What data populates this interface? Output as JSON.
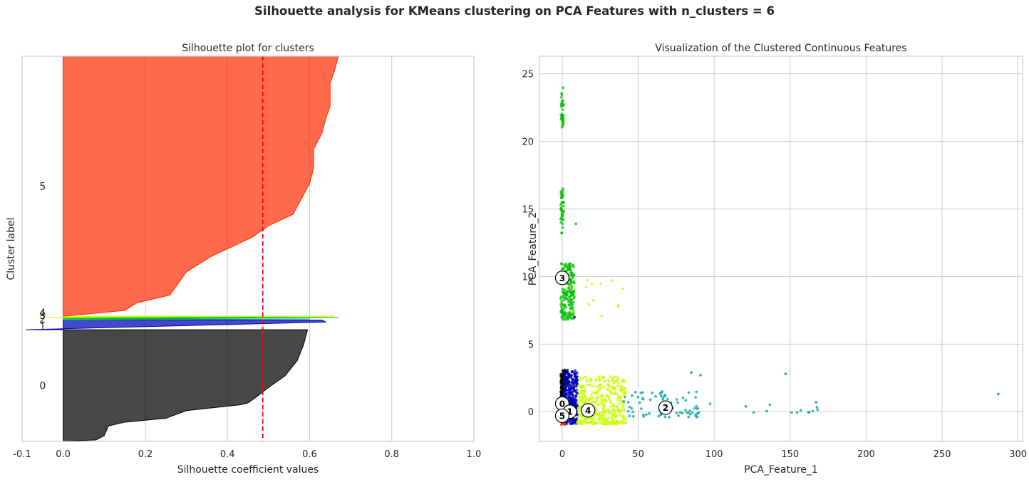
{
  "suptitle": "Silhouette analysis for KMeans clustering on PCA Features with n_clusters = 6",
  "chart_data": [
    {
      "type": "area",
      "title": "Silhouette plot for clusters",
      "xlabel": "Silhouette coefficient values",
      "ylabel": "Cluster label",
      "xlim": [
        -0.1,
        1.0
      ],
      "xticks": [
        -0.1,
        0.0,
        0.2,
        0.4,
        0.6,
        0.8,
        1.0
      ],
      "xtick_labels": [
        "-0.1",
        "0.0",
        "0.2",
        "0.4",
        "0.6",
        "0.8",
        "1.0"
      ],
      "average_silhouette": 0.486,
      "grid": true,
      "clusters": [
        {
          "label": "0",
          "color": "#000000",
          "y_range": [
            0,
            0.29
          ],
          "profile": [
            [
              0.0,
              0.0
            ],
            [
              0.08,
              0.004
            ],
            [
              0.1,
              0.015
            ],
            [
              0.11,
              0.04
            ],
            [
              0.15,
              0.05
            ],
            [
              0.25,
              0.06
            ],
            [
              0.3,
              0.08
            ],
            [
              0.43,
              0.095
            ],
            [
              0.45,
              0.1
            ],
            [
              0.47,
              0.115
            ],
            [
              0.5,
              0.14
            ],
            [
              0.54,
              0.17
            ],
            [
              0.57,
              0.21
            ],
            [
              0.585,
              0.25
            ],
            [
              0.59,
              0.27
            ],
            [
              0.595,
              0.29
            ]
          ]
        },
        {
          "label": "1",
          "color": "#0000b4",
          "y_range": [
            0.29,
            0.315
          ],
          "profile": [
            [
              -0.09,
              0.29
            ],
            [
              0.64,
              0.31
            ],
            [
              0.63,
              0.315
            ]
          ]
        },
        {
          "label": "2",
          "color": "#00a0aa",
          "y_range": [
            0.315,
            0.318
          ],
          "profile": [
            [
              0.0,
              0.315
            ],
            [
              0.6,
              0.318
            ]
          ]
        },
        {
          "label": "3",
          "color": "#00c000",
          "y_range": [
            0.318,
            0.322
          ],
          "profile": [
            [
              0.0,
              0.318
            ],
            [
              0.67,
              0.322
            ]
          ]
        },
        {
          "label": "4",
          "color": "#c8ff00",
          "y_range": [
            0.322,
            0.325
          ],
          "profile": [
            [
              -0.06,
              0.322
            ],
            [
              0.66,
              0.325
            ]
          ]
        },
        {
          "label": "5",
          "color": "#ff2a00",
          "y_range": [
            0.325,
            1.0
          ],
          "profile": [
            [
              0.0,
              0.325
            ],
            [
              0.15,
              0.34
            ],
            [
              0.18,
              0.36
            ],
            [
              0.26,
              0.38
            ],
            [
              0.28,
              0.41
            ],
            [
              0.3,
              0.44
            ],
            [
              0.36,
              0.48
            ],
            [
              0.46,
              0.53
            ],
            [
              0.5,
              0.56
            ],
            [
              0.56,
              0.59
            ],
            [
              0.58,
              0.63
            ],
            [
              0.6,
              0.67
            ],
            [
              0.61,
              0.71
            ],
            [
              0.61,
              0.76
            ],
            [
              0.63,
              0.8
            ],
            [
              0.64,
              0.84
            ],
            [
              0.65,
              0.87
            ],
            [
              0.65,
              0.93
            ],
            [
              0.66,
              0.96
            ],
            [
              0.67,
              1.0
            ]
          ]
        }
      ]
    },
    {
      "type": "scatter",
      "title": "Visualization of the Clustered Continuous Features",
      "xlabel": "PCA_Feature_1",
      "ylabel": "PCA_Feature_2",
      "xlim": [
        -15,
        303
      ],
      "ylim": [
        -2.2,
        26.3
      ],
      "xticks": [
        0,
        50,
        100,
        150,
        200,
        250,
        300
      ],
      "yticks": [
        0,
        5,
        10,
        15,
        20,
        25
      ],
      "grid": true,
      "centers": [
        {
          "label": "0",
          "x": 0,
          "y": 0.6
        },
        {
          "label": "1",
          "x": 5,
          "y": 0.0
        },
        {
          "label": "2",
          "x": 68,
          "y": 0.3
        },
        {
          "label": "3",
          "x": 0,
          "y": 9.9
        },
        {
          "label": "4",
          "x": 17,
          "y": 0.1
        },
        {
          "label": "5",
          "x": 0,
          "y": -0.3
        }
      ],
      "point_groups": [
        {
          "cluster": "3",
          "color": "#00c000",
          "x_range": [
            -1,
            1
          ],
          "y_range": [
            21,
            23
          ],
          "n": 30
        },
        {
          "cluster": "3",
          "color": "#00c000",
          "x_range": [
            -1,
            1
          ],
          "y_range": [
            23,
            25
          ],
          "n": 5
        },
        {
          "cluster": "3",
          "color": "#00c000",
          "x_range": [
            -1,
            1
          ],
          "y_range": [
            13.2,
            16.5
          ],
          "n": 45
        },
        {
          "cluster": "3",
          "color": "#00c000",
          "x_range": [
            -1,
            8
          ],
          "y_range": [
            6.8,
            11
          ],
          "n": 170
        },
        {
          "cluster": "4",
          "color": "#c8ff00",
          "x_range": [
            5,
            40
          ],
          "y_range": [
            7,
            9.8
          ],
          "n": 10
        },
        {
          "cluster": "0",
          "color": "#000000",
          "x_range": [
            -1,
            2
          ],
          "y_range": [
            -0.8,
            3.1
          ],
          "n": 200
        },
        {
          "cluster": "1",
          "color": "#0000b4",
          "x_range": [
            1,
            10
          ],
          "y_range": [
            -0.9,
            3.1
          ],
          "n": 320
        },
        {
          "cluster": "4",
          "color": "#c8ff00",
          "x_range": [
            10,
            42
          ],
          "y_range": [
            -0.9,
            2.6
          ],
          "n": 380
        },
        {
          "cluster": "2",
          "color": "#00a0aa",
          "x_range": [
            40,
            90
          ],
          "y_range": [
            -0.4,
            1.5
          ],
          "n": 70
        },
        {
          "cluster": "2",
          "color": "#00a0aa",
          "x_range": [
            90,
            170
          ],
          "y_range": [
            -0.1,
            1.0
          ],
          "n": 12
        },
        {
          "cluster": "5",
          "color": "#ff2a00",
          "x_range": [
            -1,
            2
          ],
          "y_range": [
            -1.0,
            -0.5
          ],
          "n": 10
        }
      ],
      "outliers": [
        {
          "cluster": "2",
          "color": "#00a0aa",
          "x": 287,
          "y": 1.3
        },
        {
          "cluster": "2",
          "color": "#00a0aa",
          "x": 147,
          "y": 2.8
        },
        {
          "cluster": "2",
          "color": "#00a0aa",
          "x": 167,
          "y": 0.7
        },
        {
          "cluster": "2",
          "color": "#00a0aa",
          "x": 157,
          "y": 0.1
        },
        {
          "cluster": "2",
          "color": "#00a0aa",
          "x": 85,
          "y": 2.9
        },
        {
          "cluster": "2",
          "color": "#00a0aa",
          "x": 91,
          "y": 2.7
        },
        {
          "cluster": "4",
          "color": "#c8ff00",
          "x": 33,
          "y": 9.7
        },
        {
          "cluster": "4",
          "color": "#c8ff00",
          "x": 40,
          "y": 9.1
        },
        {
          "cluster": "4",
          "color": "#c8ff00",
          "x": 37,
          "y": 7.8
        },
        {
          "cluster": "3",
          "color": "#00c000",
          "x": 9,
          "y": 13.9
        },
        {
          "cluster": "1",
          "color": "#0000b4",
          "x": 8,
          "y": 7.0
        }
      ]
    }
  ]
}
